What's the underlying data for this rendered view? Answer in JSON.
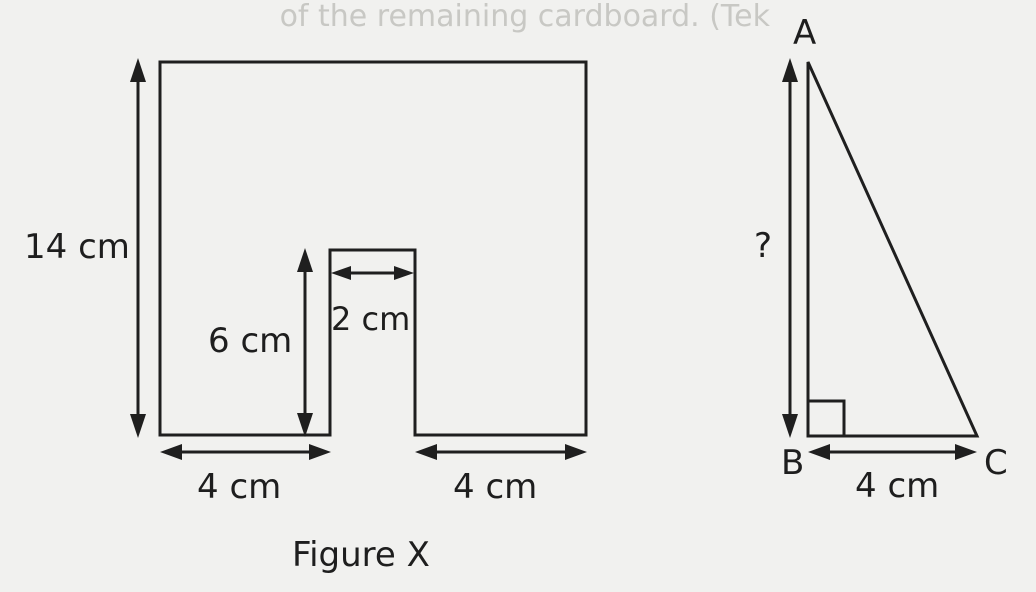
{
  "background_text": "of the remaining cardboard. (Tek",
  "figure_x": {
    "height_label": "14 cm",
    "notch_height_label": "6 cm",
    "notch_width_label": "2 cm",
    "bottom_left_label": "4 cm",
    "bottom_right_label": "4 cm",
    "caption": "Figure X"
  },
  "triangle": {
    "vertex_a": "A",
    "vertex_b": "B",
    "vertex_c": "C",
    "unknown_label": "?",
    "base_label": "4 cm"
  },
  "colors": {
    "background": "#f1f1ef",
    "ink": "#1f1f1f"
  }
}
